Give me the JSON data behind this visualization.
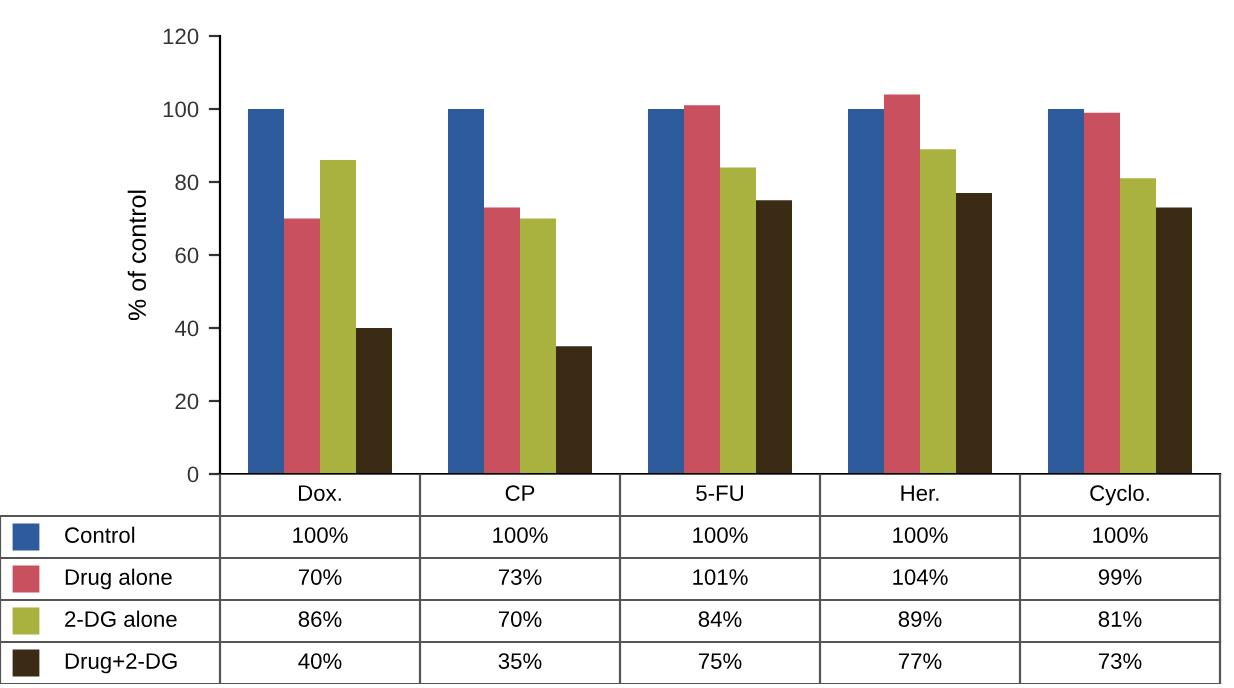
{
  "chart_data": {
    "type": "bar",
    "ylabel": "% of control",
    "categories": [
      "Dox.",
      "CP",
      "5-FU",
      "Her.",
      "Cyclo."
    ],
    "series": [
      {
        "name": "Control",
        "color": "#2d5b9c",
        "values": [
          100,
          100,
          100,
          100,
          100
        ],
        "value_labels": [
          "100%",
          "100%",
          "100%",
          "100%",
          "100%"
        ]
      },
      {
        "name": "Drug alone",
        "color": "#c8505f",
        "values": [
          70,
          73,
          101,
          104,
          99
        ],
        "value_labels": [
          "70%",
          "73%",
          "101%",
          "104%",
          "99%"
        ]
      },
      {
        "name": "2-DG alone",
        "color": "#a9b13f",
        "values": [
          86,
          70,
          84,
          89,
          81
        ],
        "value_labels": [
          "86%",
          "70%",
          "84%",
          "89%",
          "81%"
        ]
      },
      {
        "name": "Drug+2-DG",
        "color": "#3b2b15",
        "values": [
          40,
          35,
          75,
          77,
          73
        ],
        "value_labels": [
          "40%",
          "35%",
          "75%",
          "77%",
          "73%"
        ]
      }
    ],
    "ylim": [
      0,
      120
    ],
    "yticks": [
      0,
      20,
      40,
      60,
      80,
      100,
      120
    ],
    "grid": false,
    "legend": "bottom"
  }
}
